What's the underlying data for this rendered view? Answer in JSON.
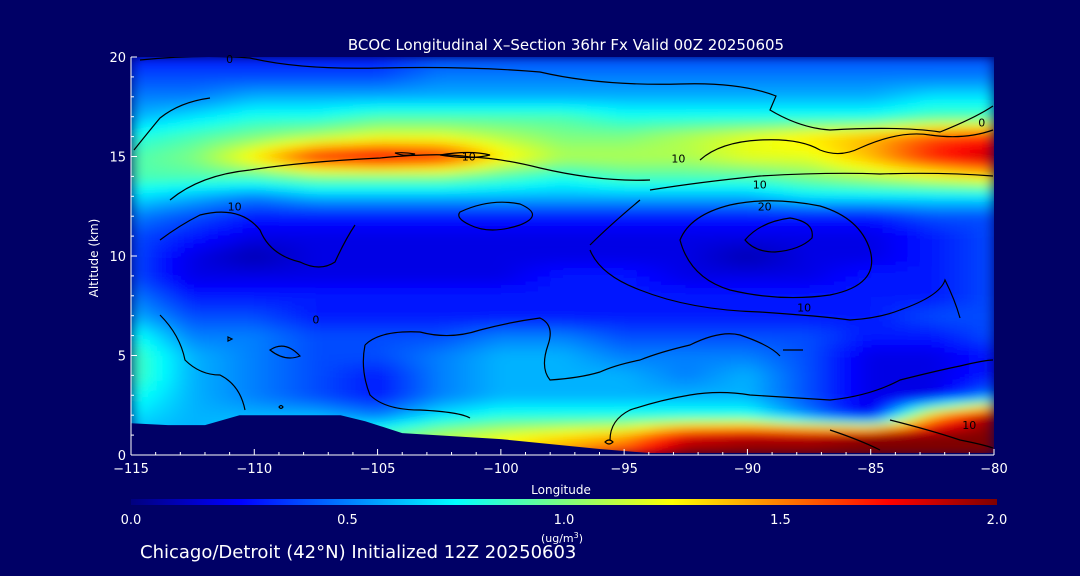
{
  "chart_data": {
    "type": "heatmap",
    "title": "BCOC Longitudinal X–Section 36hr  Fx Valid 00Z 20250605",
    "xlabel": "Longitude",
    "ylabel": "Altitude (km)",
    "xlim": [
      -115,
      -80
    ],
    "ylim": [
      0,
      20
    ],
    "x_ticks": [
      -115,
      -110,
      -105,
      -100,
      -95,
      -90,
      -85,
      -80
    ],
    "x_tick_labels": [
      "−115",
      "−110",
      "−105",
      "−100",
      "−95",
      "−90",
      "−85",
      "−80"
    ],
    "y_ticks": [
      0,
      5,
      10,
      15,
      20
    ],
    "y_tick_labels": [
      "0",
      "5",
      "10",
      "15",
      "20"
    ],
    "colorbar": {
      "min": 0.0,
      "max": 2.0,
      "ticks": [
        0.0,
        0.5,
        1.0,
        1.5,
        2.0
      ],
      "tick_labels": [
        "0.0",
        "0.5",
        "1.0",
        "1.5",
        "2.0"
      ],
      "units_label": "(ug/m",
      "units_sup": "3",
      "units_close": ")",
      "colors": [
        "#00007f",
        "#0000ff",
        "#007fff",
        "#00ffff",
        "#7fff7f",
        "#ffff00",
        "#ff7f00",
        "#ff0000",
        "#7f0000"
      ]
    },
    "field_grid": {
      "lon": [
        -115,
        -112.5,
        -110,
        -107.5,
        -105,
        -102.5,
        -100,
        -97.5,
        -95,
        -92.5,
        -90,
        -87.5,
        -85,
        -82.5,
        -80
      ],
      "alt": [
        0,
        1,
        2,
        3,
        4,
        5,
        6,
        7,
        8,
        9,
        10,
        11,
        12,
        13,
        14,
        15,
        16,
        17,
        18,
        19,
        20
      ],
      "values": [
        [
          0.5,
          0.5,
          0.6,
          0.7,
          0.9,
          1.1,
          1.3,
          1.5,
          1.7,
          2.0,
          2.0,
          2.0,
          2.0,
          2.0,
          2.0
        ],
        [
          0.6,
          0.6,
          0.7,
          0.8,
          0.9,
          1.1,
          1.2,
          1.3,
          1.4,
          1.8,
          1.9,
          1.9,
          2.0,
          2.0,
          2.0
        ],
        [
          0.7,
          0.6,
          0.6,
          0.6,
          0.5,
          0.7,
          0.8,
          0.8,
          0.8,
          0.8,
          0.8,
          0.5,
          0.2,
          1.4,
          2.0
        ],
        [
          0.8,
          0.6,
          0.5,
          0.4,
          0.3,
          0.5,
          0.6,
          0.6,
          0.6,
          0.6,
          0.6,
          0.4,
          0.2,
          0.2,
          0.5
        ],
        [
          0.9,
          0.6,
          0.5,
          0.4,
          0.3,
          0.5,
          0.6,
          0.6,
          0.6,
          0.5,
          0.6,
          0.4,
          0.2,
          0.2,
          0.3
        ],
        [
          0.9,
          0.6,
          0.5,
          0.4,
          0.4,
          0.5,
          0.6,
          0.6,
          0.5,
          0.5,
          0.5,
          0.4,
          0.2,
          0.2,
          0.3
        ],
        [
          0.8,
          0.5,
          0.5,
          0.4,
          0.4,
          0.4,
          0.5,
          0.5,
          0.4,
          0.4,
          0.4,
          0.4,
          0.3,
          0.3,
          0.4
        ],
        [
          0.6,
          0.4,
          0.4,
          0.3,
          0.3,
          0.3,
          0.3,
          0.3,
          0.3,
          0.3,
          0.3,
          0.3,
          0.3,
          0.4,
          0.4
        ],
        [
          0.5,
          0.3,
          0.3,
          0.3,
          0.3,
          0.3,
          0.3,
          0.3,
          0.3,
          0.3,
          0.3,
          0.3,
          0.3,
          0.3,
          0.4
        ],
        [
          0.4,
          0.2,
          0.2,
          0.2,
          0.2,
          0.2,
          0.2,
          0.3,
          0.3,
          0.2,
          0.2,
          0.2,
          0.3,
          0.3,
          0.4
        ],
        [
          0.4,
          0.2,
          0.1,
          0.2,
          0.2,
          0.2,
          0.2,
          0.2,
          0.2,
          0.2,
          0.1,
          0.2,
          0.2,
          0.3,
          0.4
        ],
        [
          0.4,
          0.3,
          0.2,
          0.2,
          0.2,
          0.2,
          0.2,
          0.2,
          0.2,
          0.2,
          0.2,
          0.2,
          0.2,
          0.3,
          0.4
        ],
        [
          0.5,
          0.4,
          0.3,
          0.3,
          0.3,
          0.3,
          0.3,
          0.3,
          0.3,
          0.3,
          0.3,
          0.3,
          0.3,
          0.4,
          0.4
        ],
        [
          0.7,
          0.6,
          0.5,
          0.6,
          0.6,
          0.6,
          0.6,
          0.6,
          0.6,
          0.6,
          0.6,
          0.7,
          0.7,
          0.7,
          0.7
        ],
        [
          0.9,
          0.9,
          0.9,
          1.0,
          1.0,
          1.0,
          0.9,
          0.8,
          0.9,
          0.9,
          0.9,
          1.0,
          1.1,
          1.2,
          1.3
        ],
        [
          0.9,
          1.0,
          1.3,
          1.7,
          1.8,
          1.7,
          1.3,
          1.1,
          1.1,
          1.1,
          1.2,
          1.2,
          1.4,
          1.7,
          1.9
        ],
        [
          0.8,
          0.9,
          1.0,
          1.1,
          1.2,
          1.2,
          1.1,
          1.0,
          1.0,
          1.1,
          1.2,
          1.3,
          1.4,
          1.6,
          1.7
        ],
        [
          0.6,
          0.7,
          0.8,
          0.8,
          0.9,
          0.9,
          0.9,
          0.9,
          0.8,
          0.8,
          0.8,
          0.8,
          0.8,
          0.9,
          0.9
        ],
        [
          0.5,
          0.5,
          0.6,
          0.6,
          0.6,
          0.6,
          0.6,
          0.6,
          0.6,
          0.6,
          0.6,
          0.6,
          0.6,
          0.7,
          0.7
        ],
        [
          0.4,
          0.4,
          0.4,
          0.4,
          0.4,
          0.5,
          0.5,
          0.5,
          0.5,
          0.5,
          0.5,
          0.5,
          0.5,
          0.5,
          0.5
        ],
        [
          0.3,
          0.3,
          0.3,
          0.3,
          0.3,
          0.4,
          0.4,
          0.4,
          0.4,
          0.4,
          0.4,
          0.4,
          0.4,
          0.4,
          0.4
        ]
      ]
    },
    "terrain_profile": {
      "lon": [
        -115,
        -113.5,
        -112,
        -110.6,
        -106.5,
        -105.5,
        -104,
        -100,
        -96,
        -95,
        -94,
        -90,
        -85,
        -80
      ],
      "alt": [
        1.6,
        1.5,
        1.5,
        2.0,
        2.0,
        1.7,
        1.1,
        0.8,
        0.3,
        0.2,
        0.1,
        0.1,
        0.1,
        0.1
      ]
    },
    "contour_labels": [
      {
        "text": "0",
        "lon": -111,
        "alt": 19.9
      },
      {
        "text": "0",
        "lon": -80.5,
        "alt": 16.7
      },
      {
        "text": "10",
        "lon": -101.3,
        "alt": 15.0
      },
      {
        "text": "10",
        "lon": -92.8,
        "alt": 14.9
      },
      {
        "text": "10",
        "lon": -89.5,
        "alt": 13.6
      },
      {
        "text": "10",
        "lon": -110.8,
        "alt": 12.5
      },
      {
        "text": "20",
        "lon": -89.3,
        "alt": 12.5
      },
      {
        "text": "0",
        "lon": -107.5,
        "alt": 6.8
      },
      {
        "text": "10",
        "lon": -87.7,
        "alt": 7.4
      },
      {
        "text": "10",
        "lon": -81,
        "alt": 1.5
      }
    ]
  },
  "footer": {
    "caption": "Chicago/Detroit (42°N) Initialized 12Z 20250603"
  }
}
